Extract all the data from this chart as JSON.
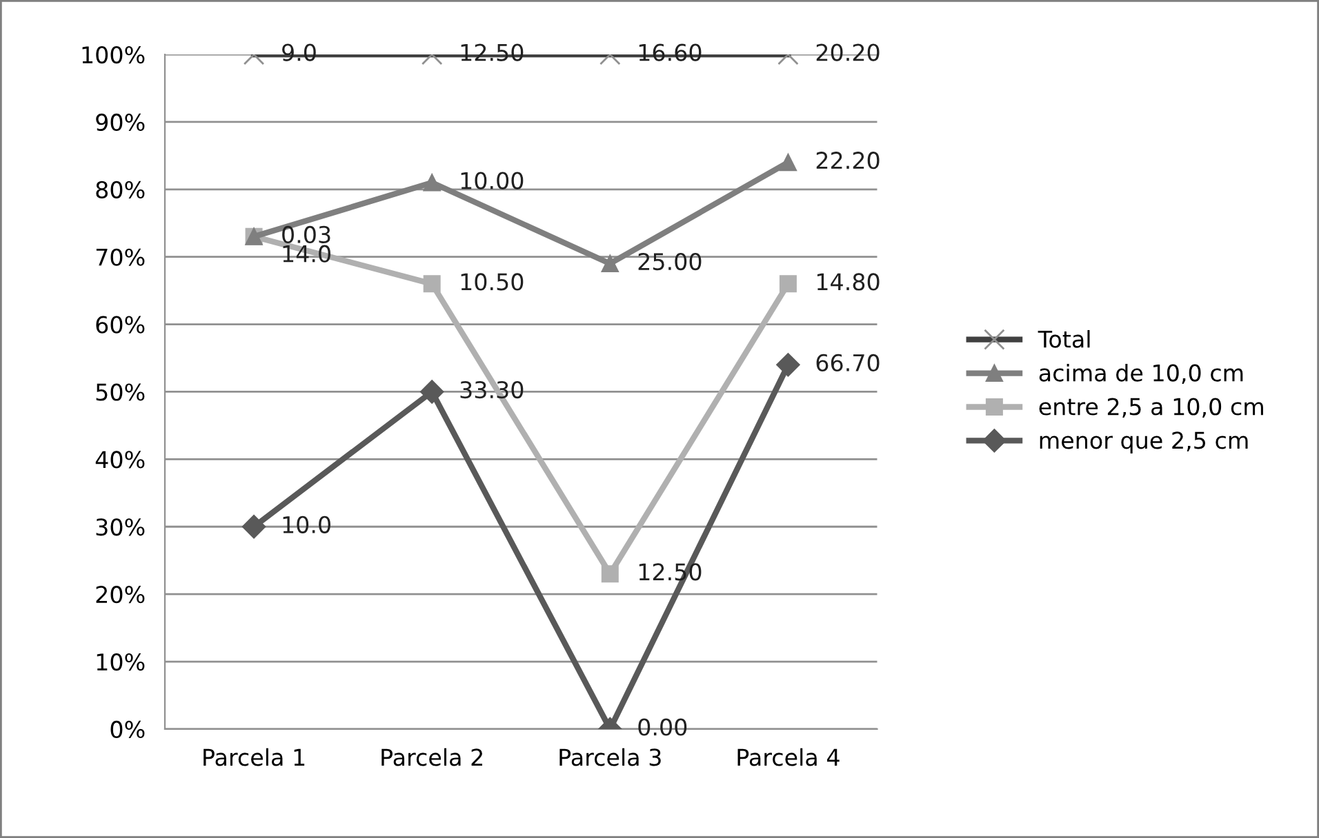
{
  "chart_data": {
    "type": "line",
    "categories": [
      "Parcela 1",
      "Parcela 2",
      "Parcela 3",
      "Parcela 4"
    ],
    "series": [
      {
        "name": "Total",
        "color": "#404040",
        "marker": "cross",
        "values": [
          100,
          100,
          100,
          100
        ]
      },
      {
        "name": "acima de 10,0 cm",
        "color": "#7f7f7f",
        "marker": "triangle",
        "values": [
          73,
          81,
          69,
          84
        ]
      },
      {
        "name": "entre 2,5 a 10,0 cm",
        "color": "#b0b0b0",
        "marker": "square",
        "values": [
          73,
          66,
          23,
          66
        ]
      },
      {
        "name": "menor que 2,5 cm",
        "color": "#595959",
        "marker": "diamond",
        "values": [
          30,
          50,
          0,
          54
        ]
      }
    ],
    "annotations": [
      {
        "text": "9.0",
        "x": "Parcela 1",
        "y": 100
      },
      {
        "text": "12.50",
        "x": "Parcela 2",
        "y": 100
      },
      {
        "text": "16.60",
        "x": "Parcela 3",
        "y": 100
      },
      {
        "text": "20.20",
        "x": "Parcela 4",
        "y": 100
      },
      {
        "text": "0.03",
        "x": "Parcela 1",
        "y": 73
      },
      {
        "text": "10.00",
        "x": "Parcela 2",
        "y": 81
      },
      {
        "text": "25.00",
        "x": "Parcela 3",
        "y": 69
      },
      {
        "text": "22.20",
        "x": "Parcela 4",
        "y": 84
      },
      {
        "text": "14.0",
        "x": "Parcela 1",
        "y": 73
      },
      {
        "text": "10.50",
        "x": "Parcela 2",
        "y": 66
      },
      {
        "text": "12.50",
        "x": "Parcela 3",
        "y": 23
      },
      {
        "text": "14.80",
        "x": "Parcela 4",
        "y": 66
      },
      {
        "text": "10.0",
        "x": "Parcela 1",
        "y": 30
      },
      {
        "text": "33.30",
        "x": "Parcela 2",
        "y": 50
      },
      {
        "text": "0.00",
        "x": "Parcela 3",
        "y": 0
      },
      {
        "text": "66.70",
        "x": "Parcela 4",
        "y": 54
      }
    ],
    "ylim": [
      0,
      100
    ],
    "yticks": [
      {
        "value": 0,
        "label": "0%"
      },
      {
        "value": 10,
        "label": "10%"
      },
      {
        "value": 20,
        "label": "20%"
      },
      {
        "value": 30,
        "label": "30%"
      },
      {
        "value": 40,
        "label": "40%"
      },
      {
        "value": 50,
        "label": "50%"
      },
      {
        "value": 60,
        "label": "60%"
      },
      {
        "value": 70,
        "label": "70%"
      },
      {
        "value": 80,
        "label": "80%"
      },
      {
        "value": 90,
        "label": "90%"
      },
      {
        "value": 100,
        "label": "100%"
      }
    ],
    "grid": "y",
    "legend": "right"
  }
}
